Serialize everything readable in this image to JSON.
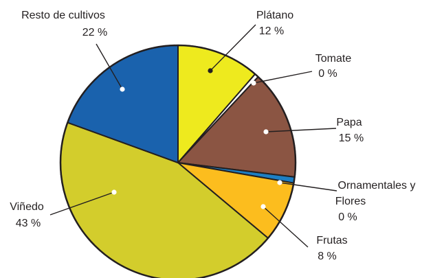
{
  "chart_data": {
    "type": "pie",
    "title": "",
    "slices": [
      {
        "name": "Plátano",
        "value": 12,
        "display": "12 %",
        "color": "#eeea1e"
      },
      {
        "name": "Tomate",
        "value": 0,
        "display": "0 %",
        "color": "#ffffff"
      },
      {
        "name": "Papa",
        "value": 15,
        "display": "15 %",
        "color": "#8b5543"
      },
      {
        "name": "Ornamentales y Flores",
        "value": 0,
        "display": "0 %",
        "color": "#1d7fc4"
      },
      {
        "name": "Frutas",
        "value": 8,
        "display": "8 %",
        "color": "#fcbd1e"
      },
      {
        "name": "Viñedo",
        "value": 43,
        "display": "43 %",
        "color": "#d3cd2c"
      },
      {
        "name": "Resto de cultivos",
        "value": 22,
        "display": "22 %",
        "color": "#1a62ad"
      }
    ],
    "labels": {
      "platano": [
        "Plátano",
        "12 %"
      ],
      "tomate": [
        "Tomate",
        "0 %"
      ],
      "papa": [
        "Papa",
        "15 %"
      ],
      "ornamentales": [
        "Ornamentales y",
        "Flores",
        "0 %"
      ],
      "frutas": [
        "Frutas",
        "8 %"
      ],
      "vinedo": [
        "Viñedo",
        "43 %"
      ],
      "resto": [
        "Resto de cultivos",
        "22 %"
      ]
    },
    "outline_color": "#231f20"
  }
}
